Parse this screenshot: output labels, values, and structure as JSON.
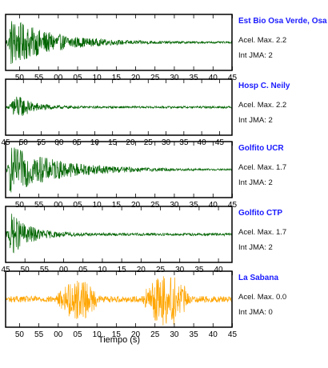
{
  "xlabel": "Tiempo (s)",
  "acel_prefix": "Acel. Max.",
  "int_prefix": "Int JMA:",
  "chart_data": [
    {
      "type": "line",
      "station": "Est Bio Osa Verde, Osa",
      "acel_max": "2.2",
      "int_jma": "2",
      "color": "#006400",
      "tick_labels": [
        "50",
        "55",
        "00",
        "05",
        "10",
        "15",
        "20",
        "25",
        "30",
        "35",
        "40",
        "45"
      ],
      "tick_position": "below",
      "envelope_peaks": [
        {
          "t": 0.3,
          "a": 0.95
        }
      ],
      "decay": 0.18,
      "noise": 0.03
    },
    {
      "type": "line",
      "station": "Hosp C. Neily",
      "acel_max": "2.2",
      "int_jma": "2",
      "color": "#006400",
      "tick_labels": [
        "45",
        "50",
        "55",
        "00",
        "05",
        "10",
        "15",
        "20",
        "25",
        "30",
        "35",
        "40",
        "45"
      ],
      "tick_position": "below",
      "envelope_peaks": [
        {
          "t": 0.5,
          "a": 0.6
        }
      ],
      "decay": 0.07,
      "noise": 0.04
    },
    {
      "type": "line",
      "station": "Golfito UCR",
      "acel_max": "1.7",
      "int_jma": "2",
      "color": "#006400",
      "tick_labels": [
        "50",
        "55",
        "00",
        "05",
        "10",
        "15",
        "20",
        "25",
        "30",
        "35",
        "40",
        "45"
      ],
      "tick_position": "below",
      "envelope_peaks": [
        {
          "t": 0.3,
          "a": 0.9
        }
      ],
      "decay": 0.22,
      "noise": 0.02
    },
    {
      "type": "line",
      "station": "Golfito CTP",
      "acel_max": "1.7",
      "int_jma": "2",
      "color": "#006400",
      "tick_labels": [
        "45",
        "50",
        "55",
        "00",
        "05",
        "10",
        "15",
        "20",
        "25",
        "30",
        "35",
        "40"
      ],
      "tick_position": "below",
      "envelope_peaks": [
        {
          "t": 0.3,
          "a": 0.85
        }
      ],
      "decay": 0.08,
      "noise": 0.05
    },
    {
      "type": "line",
      "station": "La Sabana",
      "acel_max": "0.0",
      "int_jma": "0",
      "color": "#ffa500",
      "tick_labels": [
        "50",
        "55",
        "00",
        "05",
        "10",
        "15",
        "20",
        "25",
        "30",
        "35",
        "40",
        "45"
      ],
      "tick_position": "below",
      "noise_floor": 0.12,
      "bursts": [
        {
          "start": 0.22,
          "end": 0.42,
          "a": 0.7
        },
        {
          "start": 0.6,
          "end": 0.82,
          "a": 0.95
        }
      ]
    }
  ]
}
